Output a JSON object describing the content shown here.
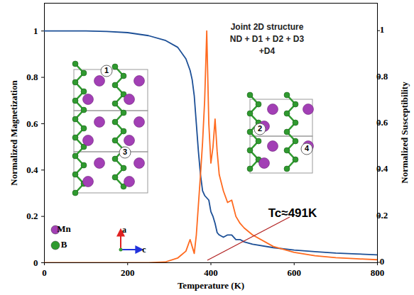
{
  "chart_data": {
    "type": "line",
    "x_label": "Temperature (K)",
    "y_label": "Normalized Magnetization",
    "y2_label": "Normalized Susceptibility",
    "xlim": [
      0,
      800
    ],
    "xticks": [
      0,
      200,
      400,
      600,
      800
    ],
    "ylim": [
      0,
      1.12
    ],
    "yticks": [
      0,
      0.2,
      0.4,
      0.6,
      0.8,
      1
    ],
    "y2lim": [
      0,
      1.12
    ],
    "y2ticks": [
      0,
      0.2,
      0.4,
      0.6,
      0.8,
      1
    ],
    "x": [
      0,
      50,
      100,
      150,
      200,
      250,
      290,
      320,
      340,
      350,
      355,
      360,
      365,
      370,
      375,
      380,
      385,
      390,
      395,
      400,
      405,
      410,
      415,
      420,
      430,
      440,
      450,
      460,
      470,
      480,
      500,
      550,
      600,
      650,
      700,
      750,
      800
    ],
    "series": [
      {
        "name": "Normalized Magnetization",
        "color": "#1c4f96",
        "values": [
          1,
          1,
          1,
          0.998,
          0.993,
          0.98,
          0.96,
          0.93,
          0.88,
          0.83,
          0.79,
          0.72,
          0.6,
          0.48,
          0.38,
          0.31,
          0.29,
          0.28,
          0.27,
          0.22,
          0.2,
          0.17,
          0.13,
          0.12,
          0.11,
          0.12,
          0.12,
          0.1,
          0.1,
          0.09,
          0.08,
          0.065,
          0.055,
          0.048,
          0.042,
          0.038,
          0.034
        ]
      },
      {
        "name": "Normalized Susceptibility",
        "color": "#ff6a1f",
        "axis": "y2",
        "values": [
          0,
          0,
          0,
          0,
          0,
          0,
          0.003,
          0.02,
          0.05,
          0.1,
          0.07,
          0.04,
          0.12,
          0.25,
          0.38,
          0.52,
          0.7,
          1,
          0.6,
          0.43,
          0.5,
          0.62,
          0.48,
          0.38,
          0.31,
          0.26,
          0.27,
          0.2,
          0.17,
          0.15,
          0.12,
          0.07,
          0.045,
          0.03,
          0.022,
          0.017,
          0.013
        ]
      }
    ],
    "annotations": [
      "Joint 2D structure",
      "ND + D1 + D2 + D3",
      "+D4",
      "Tc≈491K"
    ],
    "structure": {
      "sites": [
        "1",
        "2",
        "3",
        "4"
      ],
      "atoms": [
        {
          "label": "Mn",
          "color": "#a23fb5"
        },
        {
          "label": "B",
          "color": "#2f9a2f"
        }
      ],
      "axes": [
        {
          "label": "a",
          "color": "#e02020"
        },
        {
          "label": "c",
          "color": "#2233dd"
        }
      ]
    }
  }
}
